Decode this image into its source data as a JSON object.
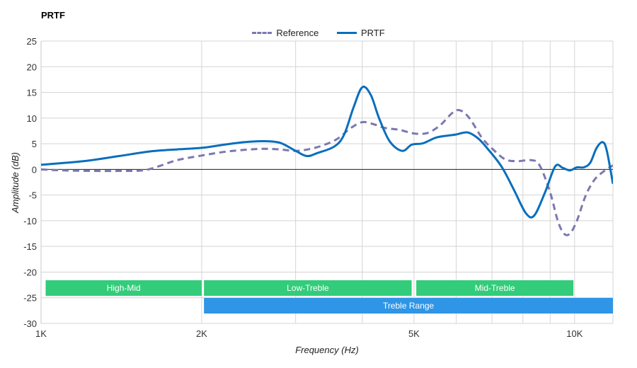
{
  "chart_data": {
    "type": "line",
    "title": "PRTF",
    "xlabel": "Frequency (Hz)",
    "ylabel": "Amplitude (dB)",
    "x_scale": "log",
    "xlim": [
      1000,
      11800
    ],
    "ylim": [
      -30,
      25
    ],
    "grid": true,
    "legend_position": "top-center",
    "x_tick_values": [
      1000,
      2000,
      3000,
      4000,
      5000,
      6000,
      7000,
      8000,
      9000,
      10000
    ],
    "x_tick_labels": [
      {
        "value": 1000,
        "label": "1K"
      },
      {
        "value": 2000,
        "label": "2K"
      },
      {
        "value": 5000,
        "label": "5K"
      },
      {
        "value": 10000,
        "label": "10K"
      }
    ],
    "y_ticks": [
      25,
      20,
      15,
      10,
      5,
      0,
      -5,
      -10,
      -15,
      -20,
      -25,
      -30
    ],
    "series": [
      {
        "name": "Reference",
        "color": "#7b78b0",
        "style": "dashed",
        "points": [
          [
            1000,
            0
          ],
          [
            1100,
            -0.2
          ],
          [
            1250,
            -0.3
          ],
          [
            1400,
            -0.3
          ],
          [
            1550,
            -0.2
          ],
          [
            1650,
            0.5
          ],
          [
            1800,
            1.8
          ],
          [
            2000,
            2.7
          ],
          [
            2200,
            3.4
          ],
          [
            2400,
            3.8
          ],
          [
            2600,
            4.0
          ],
          [
            2800,
            3.9
          ],
          [
            3000,
            3.6
          ],
          [
            3200,
            4.0
          ],
          [
            3400,
            4.8
          ],
          [
            3600,
            6.0
          ],
          [
            3800,
            8.0
          ],
          [
            4000,
            9.2
          ],
          [
            4200,
            8.8
          ],
          [
            4400,
            8.1
          ],
          [
            4700,
            7.7
          ],
          [
            5000,
            7.0
          ],
          [
            5300,
            7.1
          ],
          [
            5600,
            8.6
          ],
          [
            5900,
            11.0
          ],
          [
            6100,
            11.5
          ],
          [
            6350,
            10.0
          ],
          [
            6700,
            6.2
          ],
          [
            7000,
            4.1
          ],
          [
            7400,
            2.0
          ],
          [
            7800,
            1.6
          ],
          [
            8300,
            1.8
          ],
          [
            8600,
            0.8
          ],
          [
            9000,
            -4.5
          ],
          [
            9300,
            -10.0
          ],
          [
            9550,
            -12.5
          ],
          [
            9800,
            -12.5
          ],
          [
            10100,
            -10.0
          ],
          [
            10500,
            -5.0
          ],
          [
            10900,
            -2.0
          ],
          [
            11300,
            -0.5
          ],
          [
            11800,
            0.8
          ]
        ]
      },
      {
        "name": "PRTF",
        "color": "#0a6ebd",
        "style": "solid",
        "points": [
          [
            1000,
            0.9
          ],
          [
            1200,
            1.6
          ],
          [
            1400,
            2.6
          ],
          [
            1600,
            3.5
          ],
          [
            1800,
            3.9
          ],
          [
            2000,
            4.2
          ],
          [
            2200,
            4.8
          ],
          [
            2400,
            5.3
          ],
          [
            2600,
            5.5
          ],
          [
            2800,
            5.2
          ],
          [
            3000,
            3.6
          ],
          [
            3150,
            2.6
          ],
          [
            3300,
            3.2
          ],
          [
            3550,
            4.5
          ],
          [
            3700,
            6.8
          ],
          [
            3850,
            12.0
          ],
          [
            4000,
            16.0
          ],
          [
            4150,
            14.5
          ],
          [
            4300,
            10.0
          ],
          [
            4500,
            5.5
          ],
          [
            4750,
            3.6
          ],
          [
            4950,
            4.8
          ],
          [
            5200,
            5.1
          ],
          [
            5500,
            6.2
          ],
          [
            5800,
            6.6
          ],
          [
            6000,
            6.8
          ],
          [
            6300,
            7.2
          ],
          [
            6600,
            6.0
          ],
          [
            6900,
            3.8
          ],
          [
            7300,
            0.5
          ],
          [
            7700,
            -4.0
          ],
          [
            8100,
            -8.5
          ],
          [
            8400,
            -9.0
          ],
          [
            8800,
            -4.5
          ],
          [
            9200,
            0.6
          ],
          [
            9500,
            0.3
          ],
          [
            9800,
            -0.2
          ],
          [
            10100,
            0.4
          ],
          [
            10400,
            0.4
          ],
          [
            10700,
            1.3
          ],
          [
            11000,
            4.2
          ],
          [
            11300,
            5.3
          ],
          [
            11500,
            3.5
          ],
          [
            11800,
            -2.8
          ]
        ]
      }
    ],
    "bands": [
      {
        "label": "High-Mid",
        "from": 1020,
        "to": 2000,
        "row": 0,
        "color": "#33cc7a"
      },
      {
        "label": "Low-Treble",
        "from": 2020,
        "to": 4950,
        "row": 0,
        "color": "#33cc7a"
      },
      {
        "label": "Mid-Treble",
        "from": 5050,
        "to": 9950,
        "row": 0,
        "color": "#33cc7a"
      },
      {
        "label": "Treble Range",
        "from": 2020,
        "to": 11800,
        "row": 1,
        "color": "#2f95e6"
      }
    ]
  }
}
